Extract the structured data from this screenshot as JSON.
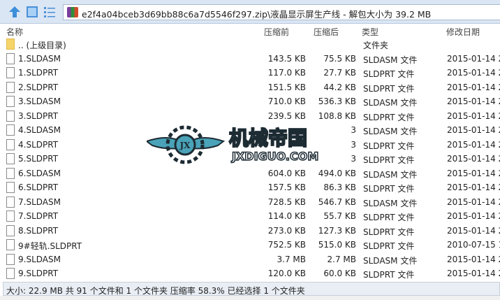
{
  "address": "e2f4a04bceb3d69bb88c6a7d5546f297.zip\\液晶显示屏生产线 - 解包大小为 39.2 MB",
  "columns": {
    "name": "名称",
    "before": "压缩前",
    "after": "压缩后",
    "type": "类型",
    "date": "修改日期"
  },
  "rows": [
    {
      "name": ".. (上级目录)",
      "before": "",
      "after": "",
      "type": "文件夹",
      "date": "",
      "folder": true
    },
    {
      "name": "1.SLDASM",
      "before": "143.5 KB",
      "after": "75.5 KB",
      "type": "SLDASM 文件",
      "date": "2015-01-14 2"
    },
    {
      "name": "1.SLDPRT",
      "before": "117.0 KB",
      "after": "27.7 KB",
      "type": "SLDPRT 文件",
      "date": "2015-01-14 2"
    },
    {
      "name": "2.SLDPRT",
      "before": "151.5 KB",
      "after": "44.2 KB",
      "type": "SLDPRT 文件",
      "date": "2015-01-14 2"
    },
    {
      "name": "3.SLDASM",
      "before": "710.0 KB",
      "after": "536.3 KB",
      "type": "SLDASM 文件",
      "date": "2015-01-14 2"
    },
    {
      "name": "3.SLDPRT",
      "before": "239.5 KB",
      "after": "108.8 KB",
      "type": "SLDPRT 文件",
      "date": "2015-01-14 2"
    },
    {
      "name": "4.SLDASM",
      "before": "",
      "after": "3",
      "type": "SLDASM 文件",
      "date": "2015-01-14 2"
    },
    {
      "name": "4.SLDPRT",
      "before": "",
      "after": "3",
      "type": "SLDPRT 文件",
      "date": "2015-01-14 2"
    },
    {
      "name": "5.SLDPRT",
      "before": "",
      "after": "3",
      "type": "SLDPRT 文件",
      "date": "2015-01-14 2"
    },
    {
      "name": "6.SLDASM",
      "before": "604.0 KB",
      "after": "494.0 KB",
      "type": "SLDASM 文件",
      "date": "2015-01-14 2"
    },
    {
      "name": "6.SLDPRT",
      "before": "157.5 KB",
      "after": "86.3 KB",
      "type": "SLDPRT 文件",
      "date": "2015-01-14 2"
    },
    {
      "name": "7.SLDASM",
      "before": "728.5 KB",
      "after": "546.7 KB",
      "type": "SLDASM 文件",
      "date": "2015-01-14 2"
    },
    {
      "name": "7.SLDPRT",
      "before": "114.0 KB",
      "after": "55.7 KB",
      "type": "SLDPRT 文件",
      "date": "2015-01-14 2"
    },
    {
      "name": "8.SLDPRT",
      "before": "273.0 KB",
      "after": "127.3 KB",
      "type": "SLDPRT 文件",
      "date": "2015-01-14 2"
    },
    {
      "name": "9#轻轨.SLDPRT",
      "before": "752.5 KB",
      "after": "515.0 KB",
      "type": "SLDPRT 文件",
      "date": "2010-07-15 1"
    },
    {
      "name": "9.SLDASM",
      "before": "3.7 MB",
      "after": "2.7 MB",
      "type": "SLDASM 文件",
      "date": "2015-01-14 2"
    },
    {
      "name": "9.SLDPRT",
      "before": "120.0 KB",
      "after": "60.0 KB",
      "type": "SLDPRT 文件",
      "date": "2015-01-14 2"
    }
  ],
  "status": "大小: 22.9 MB 共 91 个文件和 1 个文件夹 压缩率 58.3% 已经选择 1 个文件夹",
  "watermark": {
    "cn": "机械帝国",
    "en": "JXDIGUO.COM",
    "badge": "JX"
  }
}
